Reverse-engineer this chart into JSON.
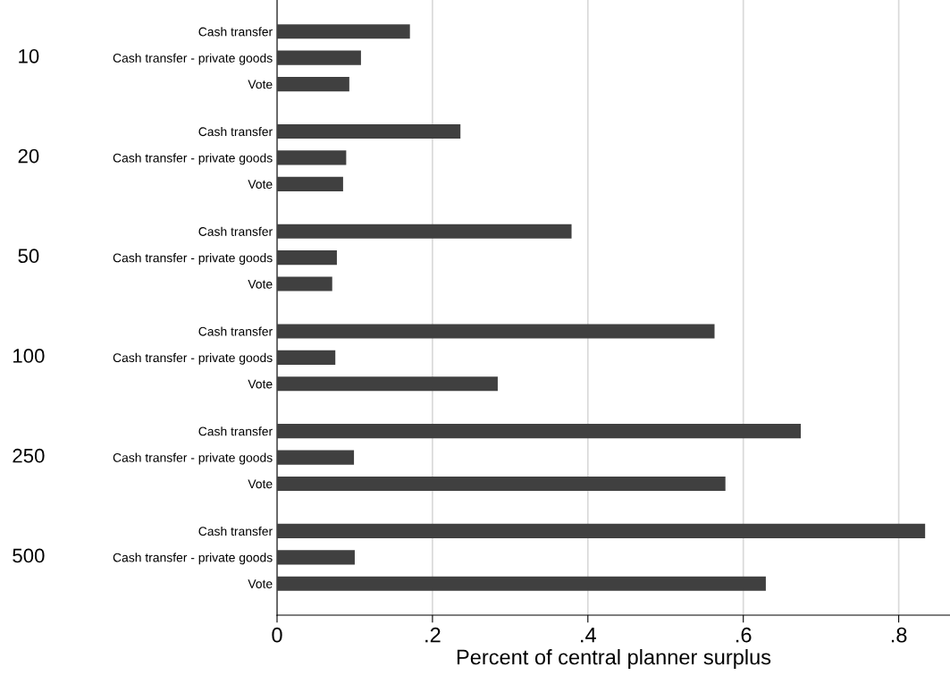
{
  "chart_data": {
    "type": "bar",
    "orientation": "horizontal",
    "categories": [
      "Cash transfer",
      "Cash transfer - private goods",
      "Vote",
      "Cash transfer",
      "Cash transfer - private goods",
      "Vote",
      "Cash transfer",
      "Cash transfer - private goods",
      "Vote",
      "Cash transfer",
      "Cash transfer - private goods",
      "Vote",
      "Cash transfer",
      "Cash transfer - private goods",
      "Vote",
      "Cash transfer",
      "Cash transfer - private goods",
      "Vote"
    ],
    "values": [
      0.171,
      0.108,
      0.093,
      0.236,
      0.089,
      0.085,
      0.379,
      0.077,
      0.071,
      0.563,
      0.075,
      0.284,
      0.674,
      0.099,
      0.577,
      0.834,
      0.1,
      0.629
    ],
    "color": "#404040",
    "annotations": [
      "10",
      "20",
      "50",
      "100",
      "250",
      "500"
    ],
    "xlabel": "Percent of central planner surplus",
    "xlim": [
      0,
      0.866
    ],
    "xticks": [
      0,
      {
        "value": 0.2,
        "label": ".2"
      },
      {
        "value": 0.4,
        "label": ".4"
      },
      {
        "value": 0.6,
        "label": ".6"
      },
      {
        "value": 0.8,
        "label": ".8"
      }
    ],
    "grid": "x"
  }
}
